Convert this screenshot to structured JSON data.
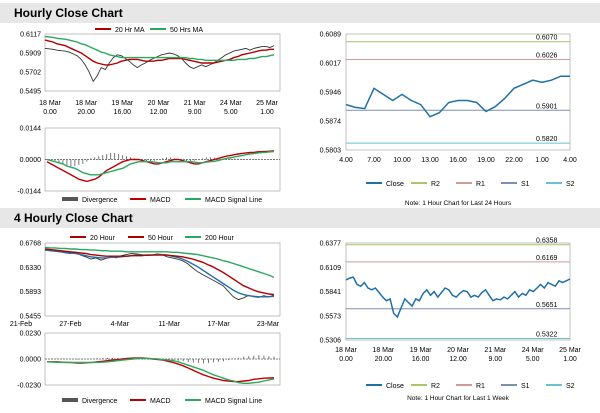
{
  "sections": {
    "hourly_title": "Hourly Close Chart",
    "four_hourly_title": "4 Hourly Close Chart"
  },
  "colors": {
    "close": "#1f6fa8",
    "ma_short": "#b00000",
    "ma_long": "#2aa860",
    "ma_200": "#2aa860",
    "r2": "#a9c46b",
    "r1": "#cf9a9a",
    "s1": "#7e8fb5",
    "s2": "#69c2cf",
    "macd": "#c00000",
    "signal": "#2aa860",
    "divergence": "#555555",
    "price": "#333333"
  },
  "chart_data": [
    {
      "id": "hourly_ma",
      "type": "line",
      "legend": [
        "20 Hr MA",
        "50 Hrs MA"
      ],
      "y_ticks": [
        "0.6117",
        "0.5909",
        "0.5702",
        "0.5495"
      ],
      "ylim": [
        0.5495,
        0.6117
      ],
      "x_ticks": [
        [
          "18 Mar",
          "0.00"
        ],
        [
          "18 Mar",
          "20.00"
        ],
        [
          "19 Mar",
          "16.00"
        ],
        [
          "20 Mar",
          "12.00"
        ],
        [
          "21 Mar",
          "9.00"
        ],
        [
          "24 Mar",
          "5.00"
        ],
        [
          "25 Mar",
          "1.00"
        ]
      ],
      "price": [
        0.596,
        0.5955,
        0.595,
        0.594,
        0.5935,
        0.593,
        0.592,
        0.59,
        0.588,
        0.584,
        0.578,
        0.57,
        0.56,
        0.566,
        0.575,
        0.573,
        0.58,
        0.586,
        0.589,
        0.588,
        0.585,
        0.582,
        0.578,
        0.575,
        0.578,
        0.58,
        0.583,
        0.585,
        0.587,
        0.589,
        0.59,
        0.591,
        0.59,
        0.588,
        0.585,
        0.58,
        0.576,
        0.574,
        0.576,
        0.578,
        0.576,
        0.578,
        0.58,
        0.583,
        0.586,
        0.589,
        0.591,
        0.593,
        0.594,
        0.595,
        0.596,
        0.594,
        0.596,
        0.597,
        0.598,
        0.598,
        0.597,
        0.599
      ],
      "series": [
        {
          "name": "20 Hr MA",
          "values": [
            0.605,
            0.604,
            0.603,
            0.601,
            0.6,
            0.599,
            0.597,
            0.595,
            0.593,
            0.591,
            0.588,
            0.585,
            0.582,
            0.58,
            0.579,
            0.578,
            0.578,
            0.579,
            0.58,
            0.582,
            0.583,
            0.584,
            0.584,
            0.584,
            0.583,
            0.582,
            0.582,
            0.582,
            0.583,
            0.583,
            0.584,
            0.585,
            0.585,
            0.585,
            0.585,
            0.584,
            0.583,
            0.582,
            0.581,
            0.58,
            0.58,
            0.58,
            0.58,
            0.581,
            0.582,
            0.583,
            0.584,
            0.586,
            0.587,
            0.589,
            0.59,
            0.591,
            0.592,
            0.593,
            0.594,
            0.594,
            0.595,
            0.595
          ]
        },
        {
          "name": "50 Hrs MA",
          "values": [
            0.609,
            0.6085,
            0.608,
            0.607,
            0.6065,
            0.606,
            0.605,
            0.604,
            0.603,
            0.601,
            0.6,
            0.598,
            0.596,
            0.594,
            0.592,
            0.591,
            0.589,
            0.588,
            0.587,
            0.586,
            0.586,
            0.586,
            0.586,
            0.586,
            0.586,
            0.586,
            0.586,
            0.586,
            0.586,
            0.586,
            0.586,
            0.586,
            0.586,
            0.586,
            0.586,
            0.586,
            0.585,
            0.585,
            0.584,
            0.584,
            0.583,
            0.583,
            0.583,
            0.583,
            0.583,
            0.583,
            0.583,
            0.583,
            0.584,
            0.584,
            0.584,
            0.585,
            0.585,
            0.586,
            0.587,
            0.587,
            0.588,
            0.589
          ]
        }
      ]
    },
    {
      "id": "hourly_macd",
      "type": "line",
      "legend": [
        "Divergence",
        "MACD",
        "MACD Signal Line"
      ],
      "y_ticks": [
        "0.0144",
        "0.0000",
        "-0.0144"
      ],
      "ylim": [
        -0.0144,
        0.0144
      ],
      "divergence": [
        0.0,
        -0.0005,
        -0.001,
        -0.0015,
        -0.002,
        -0.0025,
        -0.003,
        -0.003,
        -0.0025,
        -0.002,
        -0.001,
        0.0005,
        0.001,
        0.0015,
        0.002,
        0.0025,
        0.003,
        0.003,
        0.0025,
        0.002,
        0.0015,
        0.001,
        0.0005,
        0.0,
        -0.0005,
        -0.001,
        -0.001,
        -0.0005,
        0.0,
        0.0005,
        0.001,
        0.001,
        0.0005,
        0.0,
        -0.0005,
        -0.001,
        -0.001,
        -0.0005,
        0.0,
        0.0005,
        0.001,
        0.001,
        0.0008,
        0.0005,
        0.0003,
        0.0003,
        0.0005,
        0.0005,
        0.0003,
        0.0002,
        0.0002,
        0.0003,
        0.0003,
        0.0002,
        0.0002,
        0.0002,
        0.0002,
        0.0002
      ],
      "series": [
        {
          "name": "MACD",
          "values": [
            -0.001,
            -0.002,
            -0.003,
            -0.004,
            -0.005,
            -0.006,
            -0.007,
            -0.008,
            -0.009,
            -0.0095,
            -0.01,
            -0.0095,
            -0.009,
            -0.008,
            -0.0065,
            -0.005,
            -0.004,
            -0.003,
            -0.002,
            -0.001,
            -0.0005,
            0.0,
            0.0,
            0.0,
            -0.0005,
            -0.001,
            -0.0015,
            -0.002,
            -0.002,
            -0.0015,
            -0.001,
            -0.0005,
            0.0,
            0.0,
            -0.0005,
            -0.001,
            -0.0015,
            -0.002,
            -0.002,
            -0.0015,
            -0.001,
            -0.0005,
            0.0,
            0.0005,
            0.001,
            0.0015,
            0.0018,
            0.0022,
            0.0025,
            0.0028,
            0.003,
            0.0032,
            0.0033,
            0.0035,
            0.0036,
            0.0037,
            0.0038,
            0.004
          ]
        },
        {
          "name": "MACD Signal Line",
          "values": [
            0.0,
            -0.0005,
            -0.001,
            -0.0015,
            -0.002,
            -0.003,
            -0.0035,
            -0.004,
            -0.005,
            -0.006,
            -0.0065,
            -0.007,
            -0.007,
            -0.007,
            -0.0065,
            -0.006,
            -0.0055,
            -0.005,
            -0.0045,
            -0.004,
            -0.003,
            -0.002,
            -0.0015,
            -0.001,
            -0.001,
            -0.001,
            -0.001,
            -0.0012,
            -0.0015,
            -0.0015,
            -0.0015,
            -0.001,
            -0.001,
            -0.001,
            -0.001,
            -0.001,
            -0.001,
            -0.0012,
            -0.0015,
            -0.0015,
            -0.0012,
            -0.001,
            -0.0008,
            -0.0005,
            0.0,
            0.0005,
            0.0008,
            0.0012,
            0.0015,
            0.0018,
            0.0022,
            0.0025,
            0.0027,
            0.003,
            0.0032,
            0.0033,
            0.0035,
            0.0036
          ]
        }
      ]
    },
    {
      "id": "hourly_close",
      "type": "line",
      "title_note": "Note: 1 Hour Chart for Last 24 Hours",
      "y_ticks": [
        "0.6089",
        "0.6017",
        "0.5946",
        "0.5874",
        "0.5803"
      ],
      "ylim": [
        0.5803,
        0.6089
      ],
      "x_ticks": [
        "4.00",
        "7.00",
        "10.00",
        "13.00",
        "16.00",
        "19.00",
        "22.00",
        "1.00",
        "4.00"
      ],
      "levels": [
        {
          "name": "R2",
          "value": 0.607,
          "label": "0.6070"
        },
        {
          "name": "R1",
          "value": 0.6026,
          "label": "0.6026"
        },
        {
          "name": "S1",
          "value": 0.5901,
          "label": "0.5901"
        },
        {
          "name": "S2",
          "value": 0.582,
          "label": "0.5820"
        }
      ],
      "legend": [
        "Close",
        "R2",
        "R1",
        "S1",
        "S2"
      ],
      "values": [
        0.5915,
        0.5908,
        0.5905,
        0.5955,
        0.594,
        0.5925,
        0.594,
        0.5925,
        0.5915,
        0.5885,
        0.5895,
        0.592,
        0.5925,
        0.5925,
        0.592,
        0.5898,
        0.591,
        0.593,
        0.5955,
        0.5965,
        0.5975,
        0.597,
        0.5975,
        0.5985,
        0.5985
      ]
    },
    {
      "id": "four_hourly_ma",
      "type": "line",
      "legend": [
        "20 Hour",
        "50 Hour",
        "200 Hour"
      ],
      "y_ticks": [
        "0.6768",
        "0.6330",
        "0.5893",
        "0.5455"
      ],
      "ylim": [
        0.5455,
        0.6768
      ],
      "x_ticks": [
        "21-Feb",
        "27-Feb",
        "4-Mar",
        "11-Mar",
        "17-Mar",
        "23-Mar"
      ],
      "price": [
        0.665,
        0.663,
        0.664,
        0.661,
        0.659,
        0.658,
        0.66,
        0.655,
        0.652,
        0.648,
        0.65,
        0.646,
        0.649,
        0.652,
        0.65,
        0.654,
        0.656,
        0.658,
        0.657,
        0.656,
        0.654,
        0.655,
        0.657,
        0.656,
        0.652,
        0.65,
        0.648,
        0.645,
        0.64,
        0.632,
        0.625,
        0.62,
        0.615,
        0.61,
        0.605,
        0.6,
        0.59,
        0.58,
        0.575,
        0.578,
        0.583,
        0.58,
        0.579,
        0.582,
        0.58,
        0.583
      ],
      "series": [
        {
          "name": "20 Hour",
          "values": [
            0.664,
            0.663,
            0.662,
            0.661,
            0.66,
            0.659,
            0.658,
            0.656,
            0.654,
            0.652,
            0.651,
            0.65,
            0.65,
            0.651,
            0.651,
            0.652,
            0.653,
            0.654,
            0.655,
            0.655,
            0.655,
            0.655,
            0.656,
            0.656,
            0.655,
            0.653,
            0.651,
            0.648,
            0.644,
            0.639,
            0.634,
            0.628,
            0.622,
            0.616,
            0.61,
            0.604,
            0.598,
            0.592,
            0.587,
            0.584,
            0.582,
            0.581,
            0.58,
            0.58,
            0.58,
            0.581
          ]
        },
        {
          "name": "50 Hour",
          "values": [
            0.666,
            0.665,
            0.664,
            0.663,
            0.662,
            0.661,
            0.66,
            0.659,
            0.658,
            0.656,
            0.655,
            0.654,
            0.653,
            0.653,
            0.653,
            0.653,
            0.653,
            0.654,
            0.654,
            0.654,
            0.655,
            0.655,
            0.655,
            0.655,
            0.655,
            0.654,
            0.653,
            0.652,
            0.65,
            0.648,
            0.645,
            0.642,
            0.638,
            0.634,
            0.629,
            0.624,
            0.618,
            0.612,
            0.606,
            0.6,
            0.596,
            0.592,
            0.589,
            0.587,
            0.585,
            0.584
          ]
        },
        {
          "name": "200 Hour",
          "values": [
            0.669,
            0.668,
            0.668,
            0.667,
            0.667,
            0.666,
            0.666,
            0.665,
            0.665,
            0.664,
            0.664,
            0.663,
            0.663,
            0.662,
            0.662,
            0.662,
            0.661,
            0.661,
            0.661,
            0.661,
            0.661,
            0.661,
            0.661,
            0.661,
            0.661,
            0.66,
            0.66,
            0.659,
            0.658,
            0.657,
            0.656,
            0.654,
            0.652,
            0.65,
            0.648,
            0.645,
            0.643,
            0.64,
            0.637,
            0.634,
            0.631,
            0.628,
            0.625,
            0.622,
            0.619,
            0.615
          ]
        }
      ]
    },
    {
      "id": "four_hourly_macd",
      "type": "line",
      "legend": [
        "Divergence",
        "MACD",
        "MACD Signal Line"
      ],
      "y_ticks": [
        "0.0230",
        "0.0000",
        "-0.0230"
      ],
      "ylim": [
        -0.023,
        0.023
      ],
      "divergence": [
        0.0,
        0.0005,
        0.0005,
        0.0003,
        0.0,
        -0.0003,
        -0.0005,
        -0.0005,
        -0.0003,
        0.0,
        0.0005,
        0.0008,
        0.001,
        0.001,
        0.0008,
        0.0005,
        0.0003,
        0.0,
        -0.0003,
        -0.0005,
        -0.0005,
        -0.0003,
        0.0,
        0.0,
        -0.0005,
        -0.001,
        -0.0015,
        -0.002,
        -0.0025,
        -0.003,
        -0.0035,
        -0.004,
        -0.0035,
        -0.003,
        -0.0025,
        -0.002,
        -0.001,
        0.0,
        0.001,
        0.002,
        0.0025,
        0.003,
        0.0035,
        0.003,
        0.0025,
        0.002
      ],
      "series": [
        {
          "name": "MACD",
          "values": [
            -0.0025,
            -0.0025,
            -0.0025,
            -0.0028,
            -0.003,
            -0.0032,
            -0.0035,
            -0.0035,
            -0.0033,
            -0.003,
            -0.0025,
            -0.002,
            -0.0015,
            -0.001,
            -0.0005,
            0.0,
            0.0005,
            0.0008,
            0.001,
            0.001,
            0.0005,
            0.0,
            -0.0005,
            -0.001,
            -0.002,
            -0.003,
            -0.0045,
            -0.006,
            -0.008,
            -0.01,
            -0.012,
            -0.014,
            -0.0155,
            -0.017,
            -0.018,
            -0.019,
            -0.0195,
            -0.02,
            -0.02,
            -0.0195,
            -0.019,
            -0.018,
            -0.0175,
            -0.017,
            -0.0168,
            -0.0165
          ]
        },
        {
          "name": "MACD Signal Line",
          "values": [
            -0.0025,
            -0.0027,
            -0.0029,
            -0.003,
            -0.003,
            -0.003,
            -0.003,
            -0.003,
            -0.003,
            -0.003,
            -0.003,
            -0.0028,
            -0.0025,
            -0.002,
            -0.0015,
            -0.001,
            -0.0005,
            0.0,
            0.0005,
            0.0005,
            0.0005,
            0.0003,
            0.0,
            -0.0005,
            -0.001,
            -0.0015,
            -0.0025,
            -0.004,
            -0.0055,
            -0.007,
            -0.0085,
            -0.01,
            -0.012,
            -0.014,
            -0.0155,
            -0.017,
            -0.0185,
            -0.0195,
            -0.021,
            -0.0215,
            -0.0215,
            -0.021,
            -0.0205,
            -0.0195,
            -0.0185,
            -0.0175
          ]
        }
      ]
    },
    {
      "id": "four_hourly_close",
      "type": "line",
      "title_note": "Note: 1 Hour Chart for Last 1 Week",
      "y_ticks": [
        "0.6377",
        "0.6109",
        "0.5841",
        "0.5573",
        "0.5306"
      ],
      "ylim": [
        0.5306,
        0.6377
      ],
      "x_ticks": [
        [
          "18 Mar",
          "0.00"
        ],
        [
          "18 Mar",
          "20.00"
        ],
        [
          "19 Mar",
          "16.00"
        ],
        [
          "20 Mar",
          "12.00"
        ],
        [
          "21 Mar",
          "9.00"
        ],
        [
          "24 Mar",
          "5.00"
        ],
        [
          "25 Mar",
          "1.00"
        ]
      ],
      "levels": [
        {
          "name": "R2",
          "value": 0.6358,
          "label": "0.6358"
        },
        {
          "name": "R1",
          "value": 0.6169,
          "label": "0.6169"
        },
        {
          "name": "S1",
          "value": 0.5651,
          "label": "0.5651"
        },
        {
          "name": "S2",
          "value": 0.5322,
          "label": "0.5322"
        }
      ],
      "legend": [
        "Close",
        "R2",
        "R1",
        "S1",
        "S2"
      ],
      "values": [
        0.597,
        0.599,
        0.6,
        0.592,
        0.59,
        0.594,
        0.588,
        0.586,
        0.588,
        0.583,
        0.578,
        0.574,
        0.576,
        0.56,
        0.556,
        0.566,
        0.576,
        0.572,
        0.568,
        0.576,
        0.574,
        0.582,
        0.586,
        0.58,
        0.584,
        0.578,
        0.583,
        0.588,
        0.586,
        0.58,
        0.578,
        0.582,
        0.585,
        0.584,
        0.578,
        0.58,
        0.578,
        0.583,
        0.586,
        0.58,
        0.574,
        0.576,
        0.575,
        0.578,
        0.576,
        0.58,
        0.584,
        0.578,
        0.582,
        0.58,
        0.586,
        0.584,
        0.588,
        0.592,
        0.588,
        0.594,
        0.592,
        0.59,
        0.596,
        0.594,
        0.596,
        0.598
      ]
    }
  ]
}
